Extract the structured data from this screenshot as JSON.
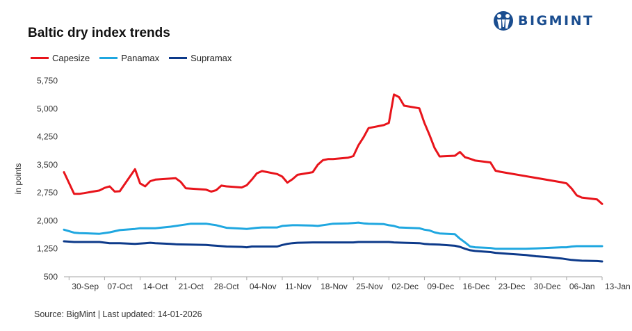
{
  "brand": {
    "logo_text": "BIGMINT",
    "logo_icon": "bigmint-people-icon",
    "color": "#1a4d8f"
  },
  "footer": {
    "source": "Source: BigMint | Last updated: 14-01-2026"
  },
  "chart_data": {
    "type": "line",
    "title": "Baltic dry index trends",
    "xlabel": "",
    "ylabel": "in points",
    "ylim": [
      500,
      5750
    ],
    "yticks": [
      500,
      1250,
      2000,
      2750,
      3500,
      4250,
      5000,
      5750
    ],
    "ytick_labels": [
      "500",
      "1,250",
      "2,000",
      "2,750",
      "3,500",
      "4,250",
      "5,000",
      "5,750"
    ],
    "xticks": [
      {
        "label": "30-Sep",
        "date": "2025-09-30"
      },
      {
        "label": "07-Oct",
        "date": "2025-10-07"
      },
      {
        "label": "14-Oct",
        "date": "2025-10-14"
      },
      {
        "label": "21-Oct",
        "date": "2025-10-21"
      },
      {
        "label": "28-Oct",
        "date": "2025-10-28"
      },
      {
        "label": "04-Nov",
        "date": "2025-11-04"
      },
      {
        "label": "11-Nov",
        "date": "2025-11-11"
      },
      {
        "label": "18-Nov",
        "date": "2025-11-18"
      },
      {
        "label": "25-Nov",
        "date": "2025-11-25"
      },
      {
        "label": "02-Dec",
        "date": "2025-12-02"
      },
      {
        "label": "09-Dec",
        "date": "2025-12-09"
      },
      {
        "label": "16-Dec",
        "date": "2025-12-16"
      },
      {
        "label": "23-Dec",
        "date": "2025-12-23"
      },
      {
        "label": "30-Dec",
        "date": "2025-12-30"
      },
      {
        "label": "06-Jan",
        "date": "2026-01-06"
      },
      {
        "label": "13-Jan",
        "date": "2026-01-13"
      }
    ],
    "x_range": [
      "2025-09-29",
      "2026-01-13"
    ],
    "grid": false,
    "legend_position": "top-left",
    "series": [
      {
        "name": "Capesize",
        "color": "#e8141b",
        "points": [
          [
            "2025-09-29",
            3300
          ],
          [
            "2025-10-01",
            2720
          ],
          [
            "2025-10-02",
            2720
          ],
          [
            "2025-10-03",
            2740
          ],
          [
            "2025-10-06",
            2810
          ],
          [
            "2025-10-07",
            2880
          ],
          [
            "2025-10-08",
            2920
          ],
          [
            "2025-10-09",
            2780
          ],
          [
            "2025-10-10",
            2790
          ],
          [
            "2025-10-13",
            3380
          ],
          [
            "2025-10-14",
            3000
          ],
          [
            "2025-10-15",
            2920
          ],
          [
            "2025-10-16",
            3060
          ],
          [
            "2025-10-17",
            3100
          ],
          [
            "2025-10-20",
            3130
          ],
          [
            "2025-10-21",
            3140
          ],
          [
            "2025-10-22",
            3040
          ],
          [
            "2025-10-23",
            2870
          ],
          [
            "2025-10-24",
            2860
          ],
          [
            "2025-10-27",
            2830
          ],
          [
            "2025-10-28",
            2780
          ],
          [
            "2025-10-29",
            2820
          ],
          [
            "2025-10-30",
            2940
          ],
          [
            "2025-10-31",
            2920
          ],
          [
            "2025-11-03",
            2890
          ],
          [
            "2025-11-04",
            2950
          ],
          [
            "2025-11-05",
            3100
          ],
          [
            "2025-11-06",
            3270
          ],
          [
            "2025-11-07",
            3330
          ],
          [
            "2025-11-10",
            3250
          ],
          [
            "2025-11-11",
            3180
          ],
          [
            "2025-11-12",
            3020
          ],
          [
            "2025-11-13",
            3110
          ],
          [
            "2025-11-14",
            3230
          ],
          [
            "2025-11-17",
            3300
          ],
          [
            "2025-11-18",
            3500
          ],
          [
            "2025-11-19",
            3620
          ],
          [
            "2025-11-20",
            3650
          ],
          [
            "2025-11-21",
            3650
          ],
          [
            "2025-11-24",
            3690
          ],
          [
            "2025-11-25",
            3730
          ],
          [
            "2025-11-26",
            4020
          ],
          [
            "2025-11-27",
            4230
          ],
          [
            "2025-11-28",
            4480
          ],
          [
            "2025-12-01",
            4560
          ],
          [
            "2025-12-02",
            4620
          ],
          [
            "2025-12-03",
            5380
          ],
          [
            "2025-12-04",
            5310
          ],
          [
            "2025-12-05",
            5080
          ],
          [
            "2025-12-08",
            5010
          ],
          [
            "2025-12-09",
            4620
          ],
          [
            "2025-12-10",
            4300
          ],
          [
            "2025-12-11",
            3950
          ],
          [
            "2025-12-12",
            3720
          ],
          [
            "2025-12-15",
            3740
          ],
          [
            "2025-12-16",
            3840
          ],
          [
            "2025-12-17",
            3700
          ],
          [
            "2025-12-18",
            3660
          ],
          [
            "2025-12-19",
            3610
          ],
          [
            "2025-12-22",
            3560
          ],
          [
            "2025-12-23",
            3340
          ],
          [
            "2025-12-24",
            3310
          ],
          [
            "2026-01-05",
            3030
          ],
          [
            "2026-01-06",
            3000
          ],
          [
            "2026-01-07",
            2860
          ],
          [
            "2026-01-08",
            2680
          ],
          [
            "2026-01-09",
            2620
          ],
          [
            "2026-01-12",
            2570
          ],
          [
            "2026-01-13",
            2450
          ]
        ]
      },
      {
        "name": "Panamax",
        "color": "#1fa7e0",
        "points": [
          [
            "2025-09-29",
            1760
          ],
          [
            "2025-10-01",
            1680
          ],
          [
            "2025-10-02",
            1670
          ],
          [
            "2025-10-06",
            1650
          ],
          [
            "2025-10-08",
            1690
          ],
          [
            "2025-10-10",
            1750
          ],
          [
            "2025-10-13",
            1780
          ],
          [
            "2025-10-14",
            1800
          ],
          [
            "2025-10-17",
            1800
          ],
          [
            "2025-10-20",
            1840
          ],
          [
            "2025-10-23",
            1900
          ],
          [
            "2025-10-24",
            1920
          ],
          [
            "2025-10-27",
            1920
          ],
          [
            "2025-10-28",
            1900
          ],
          [
            "2025-10-29",
            1880
          ],
          [
            "2025-10-31",
            1810
          ],
          [
            "2025-11-03",
            1790
          ],
          [
            "2025-11-04",
            1780
          ],
          [
            "2025-11-06",
            1810
          ],
          [
            "2025-11-07",
            1820
          ],
          [
            "2025-11-10",
            1820
          ],
          [
            "2025-11-11",
            1860
          ],
          [
            "2025-11-13",
            1880
          ],
          [
            "2025-11-14",
            1880
          ],
          [
            "2025-11-17",
            1870
          ],
          [
            "2025-11-18",
            1860
          ],
          [
            "2025-11-20",
            1900
          ],
          [
            "2025-11-21",
            1920
          ],
          [
            "2025-11-24",
            1930
          ],
          [
            "2025-11-25",
            1940
          ],
          [
            "2025-11-26",
            1950
          ],
          [
            "2025-11-27",
            1930
          ],
          [
            "2025-11-28",
            1920
          ],
          [
            "2025-12-01",
            1910
          ],
          [
            "2025-12-02",
            1880
          ],
          [
            "2025-12-03",
            1860
          ],
          [
            "2025-12-04",
            1820
          ],
          [
            "2025-12-08",
            1800
          ],
          [
            "2025-12-09",
            1760
          ],
          [
            "2025-12-10",
            1740
          ],
          [
            "2025-12-11",
            1690
          ],
          [
            "2025-12-12",
            1660
          ],
          [
            "2025-12-15",
            1640
          ],
          [
            "2025-12-16",
            1520
          ],
          [
            "2025-12-17",
            1420
          ],
          [
            "2025-12-18",
            1310
          ],
          [
            "2025-12-19",
            1290
          ],
          [
            "2025-12-22",
            1270
          ],
          [
            "2025-12-23",
            1250
          ],
          [
            "2025-12-26",
            1250
          ],
          [
            "2025-12-29",
            1250
          ],
          [
            "2025-12-31",
            1260
          ],
          [
            "2026-01-02",
            1270
          ],
          [
            "2026-01-05",
            1290
          ],
          [
            "2026-01-06",
            1290
          ],
          [
            "2026-01-07",
            1310
          ],
          [
            "2026-01-08",
            1320
          ],
          [
            "2026-01-09",
            1320
          ],
          [
            "2026-01-12",
            1320
          ],
          [
            "2026-01-13",
            1320
          ]
        ]
      },
      {
        "name": "Supramax",
        "color": "#0d3a8a",
        "points": [
          [
            "2025-09-29",
            1450
          ],
          [
            "2025-10-01",
            1430
          ],
          [
            "2025-10-06",
            1430
          ],
          [
            "2025-10-08",
            1400
          ],
          [
            "2025-10-10",
            1400
          ],
          [
            "2025-10-13",
            1380
          ],
          [
            "2025-10-14",
            1390
          ],
          [
            "2025-10-15",
            1400
          ],
          [
            "2025-10-16",
            1410
          ],
          [
            "2025-10-17",
            1400
          ],
          [
            "2025-10-20",
            1380
          ],
          [
            "2025-10-21",
            1370
          ],
          [
            "2025-10-24",
            1360
          ],
          [
            "2025-10-27",
            1350
          ],
          [
            "2025-10-28",
            1340
          ],
          [
            "2025-10-29",
            1330
          ],
          [
            "2025-10-31",
            1310
          ],
          [
            "2025-11-03",
            1300
          ],
          [
            "2025-11-04",
            1290
          ],
          [
            "2025-11-05",
            1310
          ],
          [
            "2025-11-07",
            1310
          ],
          [
            "2025-11-10",
            1310
          ],
          [
            "2025-11-11",
            1350
          ],
          [
            "2025-11-12",
            1380
          ],
          [
            "2025-11-13",
            1400
          ],
          [
            "2025-11-14",
            1410
          ],
          [
            "2025-11-17",
            1420
          ],
          [
            "2025-11-18",
            1420
          ],
          [
            "2025-11-21",
            1420
          ],
          [
            "2025-11-24",
            1420
          ],
          [
            "2025-11-25",
            1420
          ],
          [
            "2025-11-26",
            1430
          ],
          [
            "2025-12-01",
            1430
          ],
          [
            "2025-12-02",
            1430
          ],
          [
            "2025-12-03",
            1420
          ],
          [
            "2025-12-05",
            1410
          ],
          [
            "2025-12-08",
            1400
          ],
          [
            "2025-12-09",
            1380
          ],
          [
            "2025-12-10",
            1370
          ],
          [
            "2025-12-12",
            1360
          ],
          [
            "2025-12-15",
            1330
          ],
          [
            "2025-12-16",
            1300
          ],
          [
            "2025-12-17",
            1250
          ],
          [
            "2025-12-18",
            1210
          ],
          [
            "2025-12-19",
            1190
          ],
          [
            "2025-12-22",
            1160
          ],
          [
            "2025-12-23",
            1140
          ],
          [
            "2025-12-26",
            1110
          ],
          [
            "2025-12-29",
            1080
          ],
          [
            "2025-12-31",
            1050
          ],
          [
            "2026-01-02",
            1030
          ],
          [
            "2026-01-05",
            990
          ],
          [
            "2026-01-06",
            970
          ],
          [
            "2026-01-07",
            950
          ],
          [
            "2026-01-08",
            940
          ],
          [
            "2026-01-09",
            930
          ],
          [
            "2026-01-12",
            920
          ],
          [
            "2026-01-13",
            910
          ]
        ]
      }
    ]
  }
}
